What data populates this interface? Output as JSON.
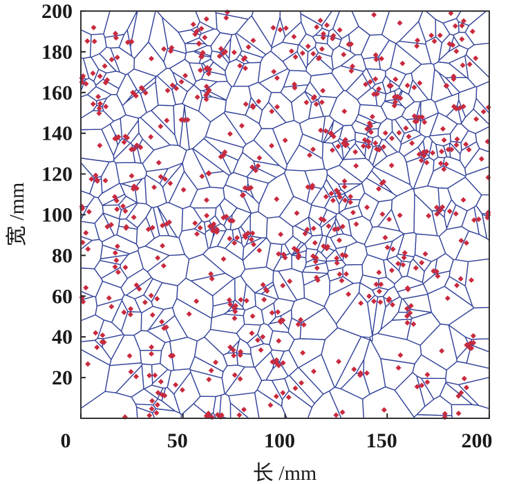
{
  "chart_data": {
    "type": "scatter",
    "subtype": "voronoi-tessellation",
    "title": "",
    "xlabel": "长 /mm",
    "ylabel": "宽 /mm",
    "xlim": [
      0,
      200
    ],
    "ylim": [
      0,
      200
    ],
    "xticks": [
      "0",
      "50",
      "100",
      "150",
      "200"
    ],
    "yticks": [
      "20",
      "40",
      "60",
      "80",
      "100",
      "120",
      "140",
      "160",
      "180",
      "200"
    ],
    "grid": false,
    "legend": "none",
    "marker": "diamond",
    "colors": {
      "points": "#c92a3e",
      "edges": "#34449a",
      "frame": "#333333"
    }
  }
}
